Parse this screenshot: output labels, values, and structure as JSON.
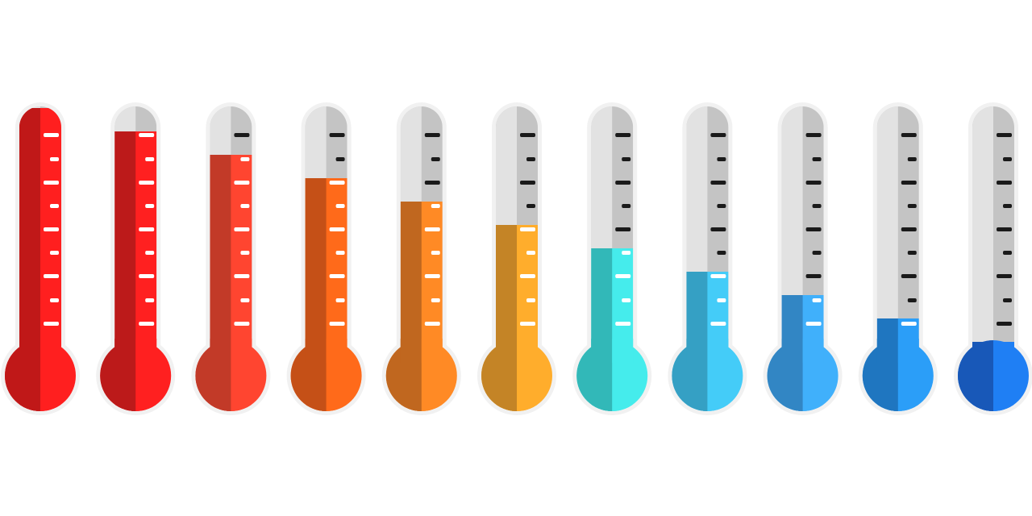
{
  "thermometers": [
    {
      "level": 1.0,
      "fill": "#ff1f1f",
      "shade": "#c01818"
    },
    {
      "level": 0.9,
      "fill": "#ff2020",
      "shade": "#bc1a1a"
    },
    {
      "level": 0.8,
      "fill": "#ff4530",
      "shade": "#c23a28"
    },
    {
      "level": 0.7,
      "fill": "#ff6a1a",
      "shade": "#c55017"
    },
    {
      "level": 0.6,
      "fill": "#ff8a25",
      "shade": "#c0671f"
    },
    {
      "level": 0.5,
      "fill": "#ffad2c",
      "shade": "#c48426"
    },
    {
      "level": 0.4,
      "fill": "#45ecec",
      "shade": "#32b8b8"
    },
    {
      "level": 0.3,
      "fill": "#44ccf8",
      "shade": "#35a0c4"
    },
    {
      "level": 0.2,
      "fill": "#40b0fb",
      "shade": "#3286c4"
    },
    {
      "level": 0.1,
      "fill": "#2b9ef8",
      "shade": "#1f76c0"
    },
    {
      "level": 0.0,
      "fill": "#1f7ff4",
      "shade": "#1858b8"
    }
  ],
  "colors": {
    "tube": "#c4c4c4",
    "tube_highlight": "#e6e6e6",
    "outline": "#f1f1f1",
    "tick_dark": "#1a1a1a",
    "tick_light": "#ffffff"
  }
}
